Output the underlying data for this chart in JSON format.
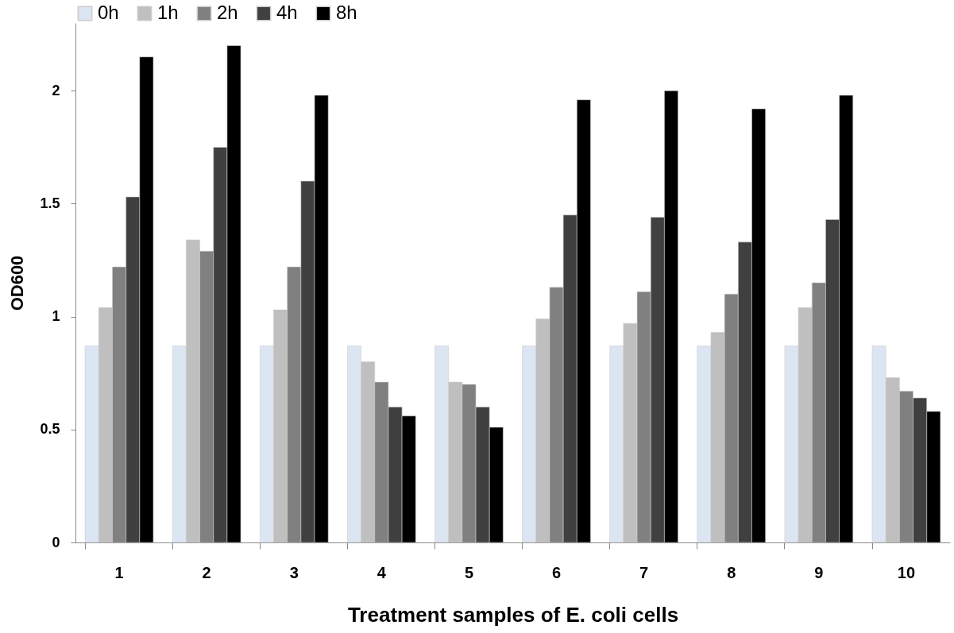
{
  "chart_data": {
    "type": "bar",
    "xlabel": "Treatment samples of E. coli cells",
    "ylabel": "OD600",
    "categories": [
      "1",
      "2",
      "3",
      "4",
      "5",
      "6",
      "7",
      "8",
      "9",
      "10"
    ],
    "series": [
      {
        "name": "0h",
        "color": "#dce6f2",
        "values": [
          0.87,
          0.87,
          0.87,
          0.87,
          0.87,
          0.87,
          0.87,
          0.87,
          0.87,
          0.87
        ]
      },
      {
        "name": "1h",
        "color": "#bfbfbf",
        "values": [
          1.04,
          1.34,
          1.03,
          0.8,
          0.71,
          0.99,
          0.97,
          0.93,
          1.04,
          0.73
        ]
      },
      {
        "name": "2h",
        "color": "#808080",
        "values": [
          1.22,
          1.29,
          1.22,
          0.71,
          0.7,
          1.13,
          1.11,
          1.1,
          1.15,
          0.67
        ]
      },
      {
        "name": "4h",
        "color": "#404040",
        "values": [
          1.53,
          1.75,
          1.6,
          0.6,
          0.6,
          1.45,
          1.44,
          1.33,
          1.43,
          0.64
        ]
      },
      {
        "name": "8h",
        "color": "#000000",
        "values": [
          2.15,
          2.2,
          1.98,
          0.56,
          0.51,
          1.96,
          2.0,
          1.92,
          1.98,
          0.58
        ]
      }
    ],
    "ylim": [
      0,
      2.3
    ],
    "yticks": [
      0,
      0.5,
      1,
      1.5,
      2
    ],
    "grid": false,
    "legend": "top"
  }
}
